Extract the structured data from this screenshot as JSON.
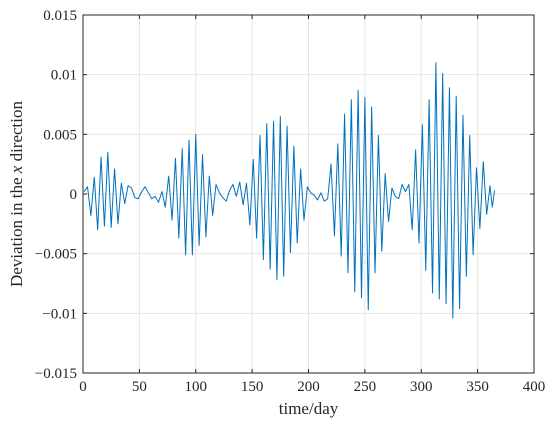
{
  "chart_data": {
    "type": "line",
    "title": "",
    "xlabel": "time/day",
    "ylabel_parts": {
      "before": "Deviation in the ",
      "italic": "x",
      "after": " direction"
    },
    "xlim": [
      0,
      400
    ],
    "ylim": [
      -0.015,
      0.015
    ],
    "x_ticks": [
      {
        "value": 0,
        "label": "0"
      },
      {
        "value": 50,
        "label": "50"
      },
      {
        "value": 100,
        "label": "100"
      },
      {
        "value": 150,
        "label": "150"
      },
      {
        "value": 200,
        "label": "200"
      },
      {
        "value": 250,
        "label": "250"
      },
      {
        "value": 300,
        "label": "300"
      },
      {
        "value": 350,
        "label": "350"
      },
      {
        "value": 400,
        "label": "400"
      }
    ],
    "y_ticks": [
      {
        "value": -0.015,
        "label": "−0.015"
      },
      {
        "value": -0.01,
        "label": "−0.01"
      },
      {
        "value": -0.005,
        "label": "−0.005"
      },
      {
        "value": 0,
        "label": "0"
      },
      {
        "value": 0.005,
        "label": "0.005"
      },
      {
        "value": 0.01,
        "label": "0.01"
      },
      {
        "value": 0.015,
        "label": "0.015"
      }
    ],
    "grid": true,
    "series": [
      {
        "color": "#0072bd",
        "points": [
          [
            1,
            0.0002
          ],
          [
            4,
            0.0006
          ],
          [
            7,
            -0.0018
          ],
          [
            10,
            0.0014
          ],
          [
            13,
            -0.003
          ],
          [
            16,
            0.0031
          ],
          [
            19,
            -0.0027
          ],
          [
            22,
            0.0035
          ],
          [
            25,
            -0.0028
          ],
          [
            28,
            0.0021
          ],
          [
            31,
            -0.0025
          ],
          [
            34,
            0.0009
          ],
          [
            37,
            -0.0008
          ],
          [
            40,
            0.0007
          ],
          [
            43,
            0.0005
          ],
          [
            46,
            -0.0003
          ],
          [
            49,
            -0.0004
          ],
          [
            52,
            0.0002
          ],
          [
            55,
            0.0006
          ],
          [
            58,
            0.0001
          ],
          [
            61,
            -0.0004
          ],
          [
            64,
            -0.0002
          ],
          [
            67,
            -0.0007
          ],
          [
            70,
            0.0002
          ],
          [
            73,
            -0.0011
          ],
          [
            76,
            0.0015
          ],
          [
            79,
            -0.0022
          ],
          [
            82,
            0.003
          ],
          [
            85,
            -0.0037
          ],
          [
            88,
            0.0038
          ],
          [
            91,
            -0.0051
          ],
          [
            94,
            0.0045
          ],
          [
            97,
            -0.0051
          ],
          [
            100,
            0.005
          ],
          [
            103,
            -0.0043
          ],
          [
            106,
            0.0033
          ],
          [
            109,
            -0.0036
          ],
          [
            112,
            0.0015
          ],
          [
            115,
            -0.0018
          ],
          [
            118,
            0.0008
          ],
          [
            121,
            0.0001
          ],
          [
            124,
            -0.0003
          ],
          [
            127,
            -0.0006
          ],
          [
            130,
            0.0003
          ],
          [
            133,
            0.0008
          ],
          [
            136,
            -0.0002
          ],
          [
            139,
            0.001
          ],
          [
            142,
            -0.0009
          ],
          [
            145,
            0.0009
          ],
          [
            148,
            -0.0026
          ],
          [
            151,
            0.0029
          ],
          [
            154,
            -0.0037
          ],
          [
            157,
            0.0049
          ],
          [
            160,
            -0.0055
          ],
          [
            163,
            0.0059
          ],
          [
            166,
            -0.0063
          ],
          [
            169,
            0.0061
          ],
          [
            172,
            -0.0072
          ],
          [
            175,
            0.0065
          ],
          [
            178,
            -0.0069
          ],
          [
            181,
            0.0057
          ],
          [
            184,
            -0.0049
          ],
          [
            187,
            0.004
          ],
          [
            190,
            -0.0041
          ],
          [
            193,
            0.0021
          ],
          [
            196,
            -0.0022
          ],
          [
            199,
            0.0006
          ],
          [
            202,
            0.0001
          ],
          [
            205,
            -0.0001
          ],
          [
            208,
            -0.0005
          ],
          [
            211,
            0.0001
          ],
          [
            214,
            -0.0006
          ],
          [
            217,
            -0.0004
          ],
          [
            220,
            0.0025
          ],
          [
            223,
            -0.0035
          ],
          [
            226,
            0.0042
          ],
          [
            229,
            -0.0052
          ],
          [
            232,
            0.0067
          ],
          [
            235,
            -0.0066
          ],
          [
            238,
            0.0079
          ],
          [
            241,
            -0.0082
          ],
          [
            244,
            0.0087
          ],
          [
            247,
            -0.0087
          ],
          [
            250,
            0.0081
          ],
          [
            253,
            -0.0097
          ],
          [
            256,
            0.0073
          ],
          [
            259,
            -0.0066
          ],
          [
            262,
            0.0049
          ],
          [
            265,
            -0.0048
          ],
          [
            268,
            0.0017
          ],
          [
            271,
            -0.0023
          ],
          [
            274,
            0.0005
          ],
          [
            277,
            -0.0002
          ],
          [
            280,
            -0.0004
          ],
          [
            283,
            0.0008
          ],
          [
            286,
            0.0002
          ],
          [
            289,
            0.0008
          ],
          [
            292,
            -0.003
          ],
          [
            295,
            0.0037
          ],
          [
            298,
            -0.0041
          ],
          [
            301,
            0.0058
          ],
          [
            304,
            -0.0064
          ],
          [
            307,
            0.0079
          ],
          [
            310,
            -0.0083
          ],
          [
            313,
            0.011
          ],
          [
            316,
            -0.0088
          ],
          [
            319,
            0.0101
          ],
          [
            322,
            -0.0092
          ],
          [
            325,
            0.0089
          ],
          [
            328,
            -0.0104
          ],
          [
            331,
            0.0082
          ],
          [
            334,
            -0.0096
          ],
          [
            337,
            0.0066
          ],
          [
            340,
            -0.0069
          ],
          [
            343,
            0.0049
          ],
          [
            346,
            -0.0051
          ],
          [
            349,
            0.0022
          ],
          [
            352,
            -0.0029
          ],
          [
            355,
            0.0027
          ],
          [
            358,
            -0.0017
          ],
          [
            361,
            0.0007
          ],
          [
            363,
            -0.0011
          ],
          [
            365,
            0.0003
          ]
        ]
      }
    ]
  }
}
